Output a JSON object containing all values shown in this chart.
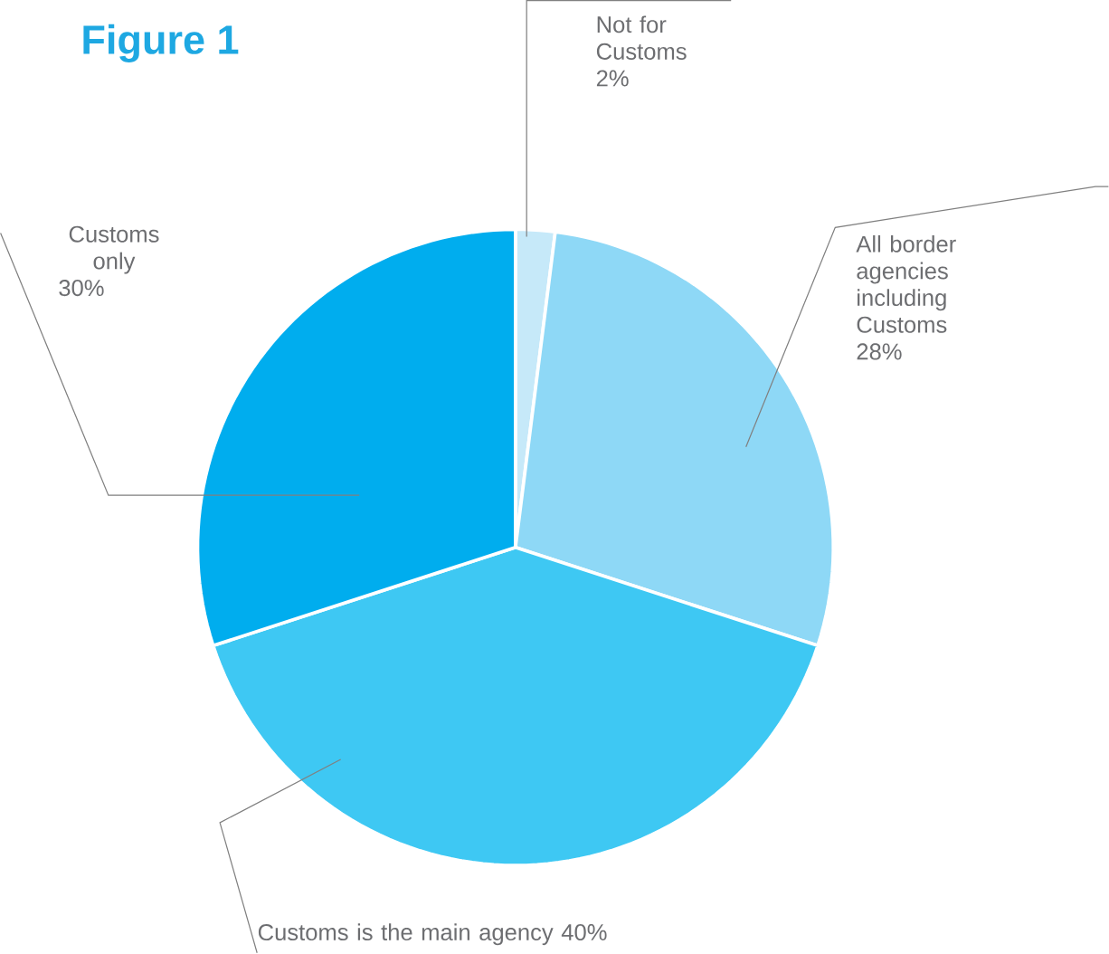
{
  "chart_data": {
    "type": "pie",
    "title": "Figure 1",
    "categories": [
      "Not for Customs",
      "All border agencies including Customs",
      "Customs is the main agency",
      "Customs only"
    ],
    "values": [
      2,
      28,
      40,
      30
    ],
    "value_labels": [
      "2%",
      "28%",
      "40%",
      "30%"
    ],
    "colors": [
      "#c6e9f9",
      "#8ed8f6",
      "#3ec8f3",
      "#00adee"
    ]
  }
}
